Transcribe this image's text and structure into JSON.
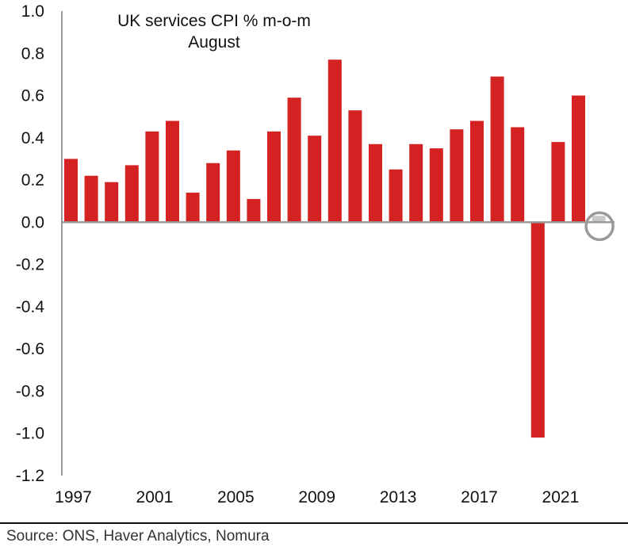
{
  "chart_data": {
    "type": "bar",
    "title": "UK services CPI % m-o-m",
    "subtitle": "August",
    "xlabel": "",
    "ylabel": "",
    "ylim": [
      -1.2,
      1.0
    ],
    "yticks": [
      "1.0",
      "0.8",
      "0.6",
      "0.4",
      "0.2",
      "0.0",
      "-0.2",
      "-0.4",
      "-0.6",
      "-0.8",
      "-1.0",
      "-1.2"
    ],
    "ytick_values": [
      1.0,
      0.8,
      0.6,
      0.4,
      0.2,
      0.0,
      -0.2,
      -0.4,
      -0.6,
      -0.8,
      -1.0,
      -1.2
    ],
    "xtick_labels": [
      "1997",
      "2001",
      "2005",
      "2009",
      "2013",
      "2017",
      "2021"
    ],
    "categories": [
      1997,
      1998,
      1999,
      2000,
      2001,
      2002,
      2003,
      2004,
      2005,
      2006,
      2007,
      2008,
      2009,
      2010,
      2011,
      2012,
      2013,
      2014,
      2015,
      2016,
      2017,
      2018,
      2019,
      2020,
      2021,
      2022,
      2023
    ],
    "values": [
      0.3,
      0.22,
      0.19,
      0.27,
      0.43,
      0.48,
      0.14,
      0.28,
      0.34,
      0.11,
      0.43,
      0.59,
      0.41,
      0.77,
      0.53,
      0.37,
      0.25,
      0.37,
      0.35,
      0.44,
      0.48,
      0.69,
      0.45,
      -1.02,
      0.38,
      0.6,
      0.03
    ],
    "highlight_index": 26,
    "colors": {
      "bar": "#d42222",
      "highlight": "#c8c8c8",
      "axis": "#999999",
      "circle": "#999999"
    }
  },
  "source": "Source: ONS, Haver Analytics, Nomura"
}
